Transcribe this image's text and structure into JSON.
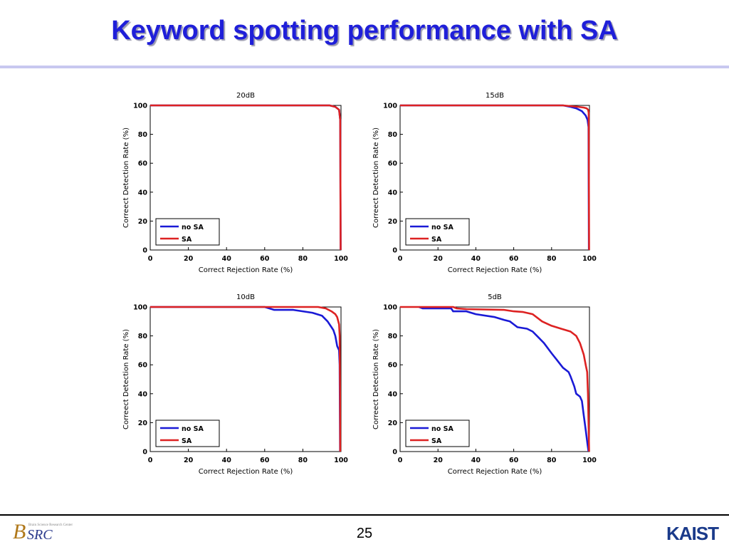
{
  "slide": {
    "title": "Keyword spotting performance with SA",
    "page_number": "25",
    "logo_left": "BSRC",
    "logo_left_caption": "Brain Science Research Center",
    "logo_right": "KAIST"
  },
  "colors": {
    "title": "#1f1fd9",
    "no_sa": "#1a1ad6",
    "sa": "#dd2222"
  },
  "chart_data": [
    {
      "type": "line",
      "title": "20dB",
      "xlabel": "Correct Rejection Rate (%)",
      "ylabel": "Correect Detection Rate (%)",
      "xlim": [
        0,
        100
      ],
      "ylim": [
        0,
        100
      ],
      "xticks": [
        0,
        20,
        40,
        60,
        80,
        100
      ],
      "yticks": [
        0,
        20,
        40,
        60,
        80,
        100
      ],
      "legend_position": "bottom-left",
      "grid": false,
      "series": [
        {
          "name": "no SA",
          "color": "#1a1ad6",
          "points": [
            [
              0,
              100
            ],
            [
              94,
              100
            ],
            [
              97,
              99
            ],
            [
              99,
              97
            ],
            [
              99.6,
              90
            ],
            [
              99.8,
              0
            ]
          ]
        },
        {
          "name": "SA",
          "color": "#dd2222",
          "points": [
            [
              0,
              100
            ],
            [
              94,
              100
            ],
            [
              97,
              99
            ],
            [
              99,
              97
            ],
            [
              99.6,
              90
            ],
            [
              99.8,
              0
            ]
          ]
        }
      ]
    },
    {
      "type": "line",
      "title": "15dB",
      "xlabel": "Correct Rejection Rate (%)",
      "ylabel": "Correect Detection Rate (%)",
      "xlim": [
        0,
        100
      ],
      "ylim": [
        0,
        100
      ],
      "xticks": [
        0,
        20,
        40,
        60,
        80,
        100
      ],
      "yticks": [
        0,
        20,
        40,
        60,
        80,
        100
      ],
      "legend_position": "bottom-left",
      "grid": false,
      "series": [
        {
          "name": "no SA",
          "color": "#1a1ad6",
          "points": [
            [
              0,
              100
            ],
            [
              86,
              100
            ],
            [
              90,
              99
            ],
            [
              93,
              98
            ],
            [
              96,
              96
            ],
            [
              98,
              93
            ],
            [
              99,
              90
            ],
            [
              99.5,
              85
            ],
            [
              99.7,
              0
            ]
          ]
        },
        {
          "name": "SA",
          "color": "#dd2222",
          "points": [
            [
              0,
              100
            ],
            [
              86,
              100
            ],
            [
              90,
              99.5
            ],
            [
              94,
              99
            ],
            [
              97,
              98.5
            ],
            [
              98.5,
              98
            ],
            [
              99.3,
              97
            ],
            [
              99.6,
              95
            ],
            [
              99.8,
              0
            ]
          ]
        }
      ]
    },
    {
      "type": "line",
      "title": "10dB",
      "xlabel": "Correct Rejection Rate (%)",
      "ylabel": "Correect Detection Rate (%)",
      "xlim": [
        0,
        100
      ],
      "ylim": [
        0,
        100
      ],
      "xticks": [
        0,
        20,
        40,
        60,
        80,
        100
      ],
      "yticks": [
        0,
        20,
        40,
        60,
        80,
        100
      ],
      "legend_position": "bottom-left",
      "grid": false,
      "series": [
        {
          "name": "no SA",
          "color": "#1a1ad6",
          "points": [
            [
              0,
              100
            ],
            [
              60,
              100
            ],
            [
              65,
              98
            ],
            [
              75,
              98
            ],
            [
              80,
              97
            ],
            [
              85,
              96
            ],
            [
              90,
              94
            ],
            [
              93,
              90
            ],
            [
              95,
              86
            ],
            [
              96,
              84
            ],
            [
              97,
              80
            ],
            [
              98,
              73
            ],
            [
              99,
              70
            ],
            [
              99.3,
              60
            ],
            [
              99.5,
              0
            ]
          ]
        },
        {
          "name": "SA",
          "color": "#dd2222",
          "points": [
            [
              0,
              100
            ],
            [
              88,
              100
            ],
            [
              92,
              99
            ],
            [
              95,
              97
            ],
            [
              97,
              95
            ],
            [
              98,
              93
            ],
            [
              99,
              88
            ],
            [
              99.3,
              80
            ],
            [
              99.5,
              40
            ],
            [
              99.6,
              0
            ]
          ]
        }
      ]
    },
    {
      "type": "line",
      "title": "5dB",
      "xlabel": "Correct Rejection Rate (%)",
      "ylabel": "Correect Detection Rate (%)",
      "xlim": [
        0,
        100
      ],
      "ylim": [
        0,
        100
      ],
      "xticks": [
        0,
        20,
        40,
        60,
        80,
        100
      ],
      "yticks": [
        0,
        20,
        40,
        60,
        80,
        100
      ],
      "legend_position": "bottom-left",
      "grid": false,
      "series": [
        {
          "name": "no SA",
          "color": "#1a1ad6",
          "points": [
            [
              10,
              100
            ],
            [
              12,
              99
            ],
            [
              27,
              99
            ],
            [
              28,
              97
            ],
            [
              35,
              97
            ],
            [
              40,
              95
            ],
            [
              50,
              93
            ],
            [
              55,
              91
            ],
            [
              58,
              90
            ],
            [
              60,
              88
            ],
            [
              62,
              86
            ],
            [
              67,
              85
            ],
            [
              70,
              83
            ],
            [
              73,
              79
            ],
            [
              76,
              75
            ],
            [
              80,
              68
            ],
            [
              83,
              63
            ],
            [
              86,
              58
            ],
            [
              89,
              55
            ],
            [
              90,
              52
            ],
            [
              92,
              45
            ],
            [
              93,
              40
            ],
            [
              95,
              38
            ],
            [
              96,
              35
            ],
            [
              97,
              25
            ],
            [
              98,
              15
            ],
            [
              99,
              5
            ],
            [
              99.5,
              0
            ]
          ]
        },
        {
          "name": "SA",
          "color": "#dd2222",
          "points": [
            [
              0,
              100
            ],
            [
              28,
              100
            ],
            [
              30,
              99
            ],
            [
              35,
              98.5
            ],
            [
              55,
              98
            ],
            [
              60,
              97
            ],
            [
              65,
              96.5
            ],
            [
              70,
              95
            ],
            [
              75,
              90
            ],
            [
              80,
              87
            ],
            [
              85,
              85
            ],
            [
              90,
              83
            ],
            [
              93,
              80
            ],
            [
              95,
              75
            ],
            [
              97,
              67
            ],
            [
              98,
              60
            ],
            [
              98.8,
              55
            ],
            [
              99.2,
              40
            ],
            [
              99.5,
              20
            ],
            [
              99.8,
              0
            ]
          ]
        }
      ]
    }
  ]
}
